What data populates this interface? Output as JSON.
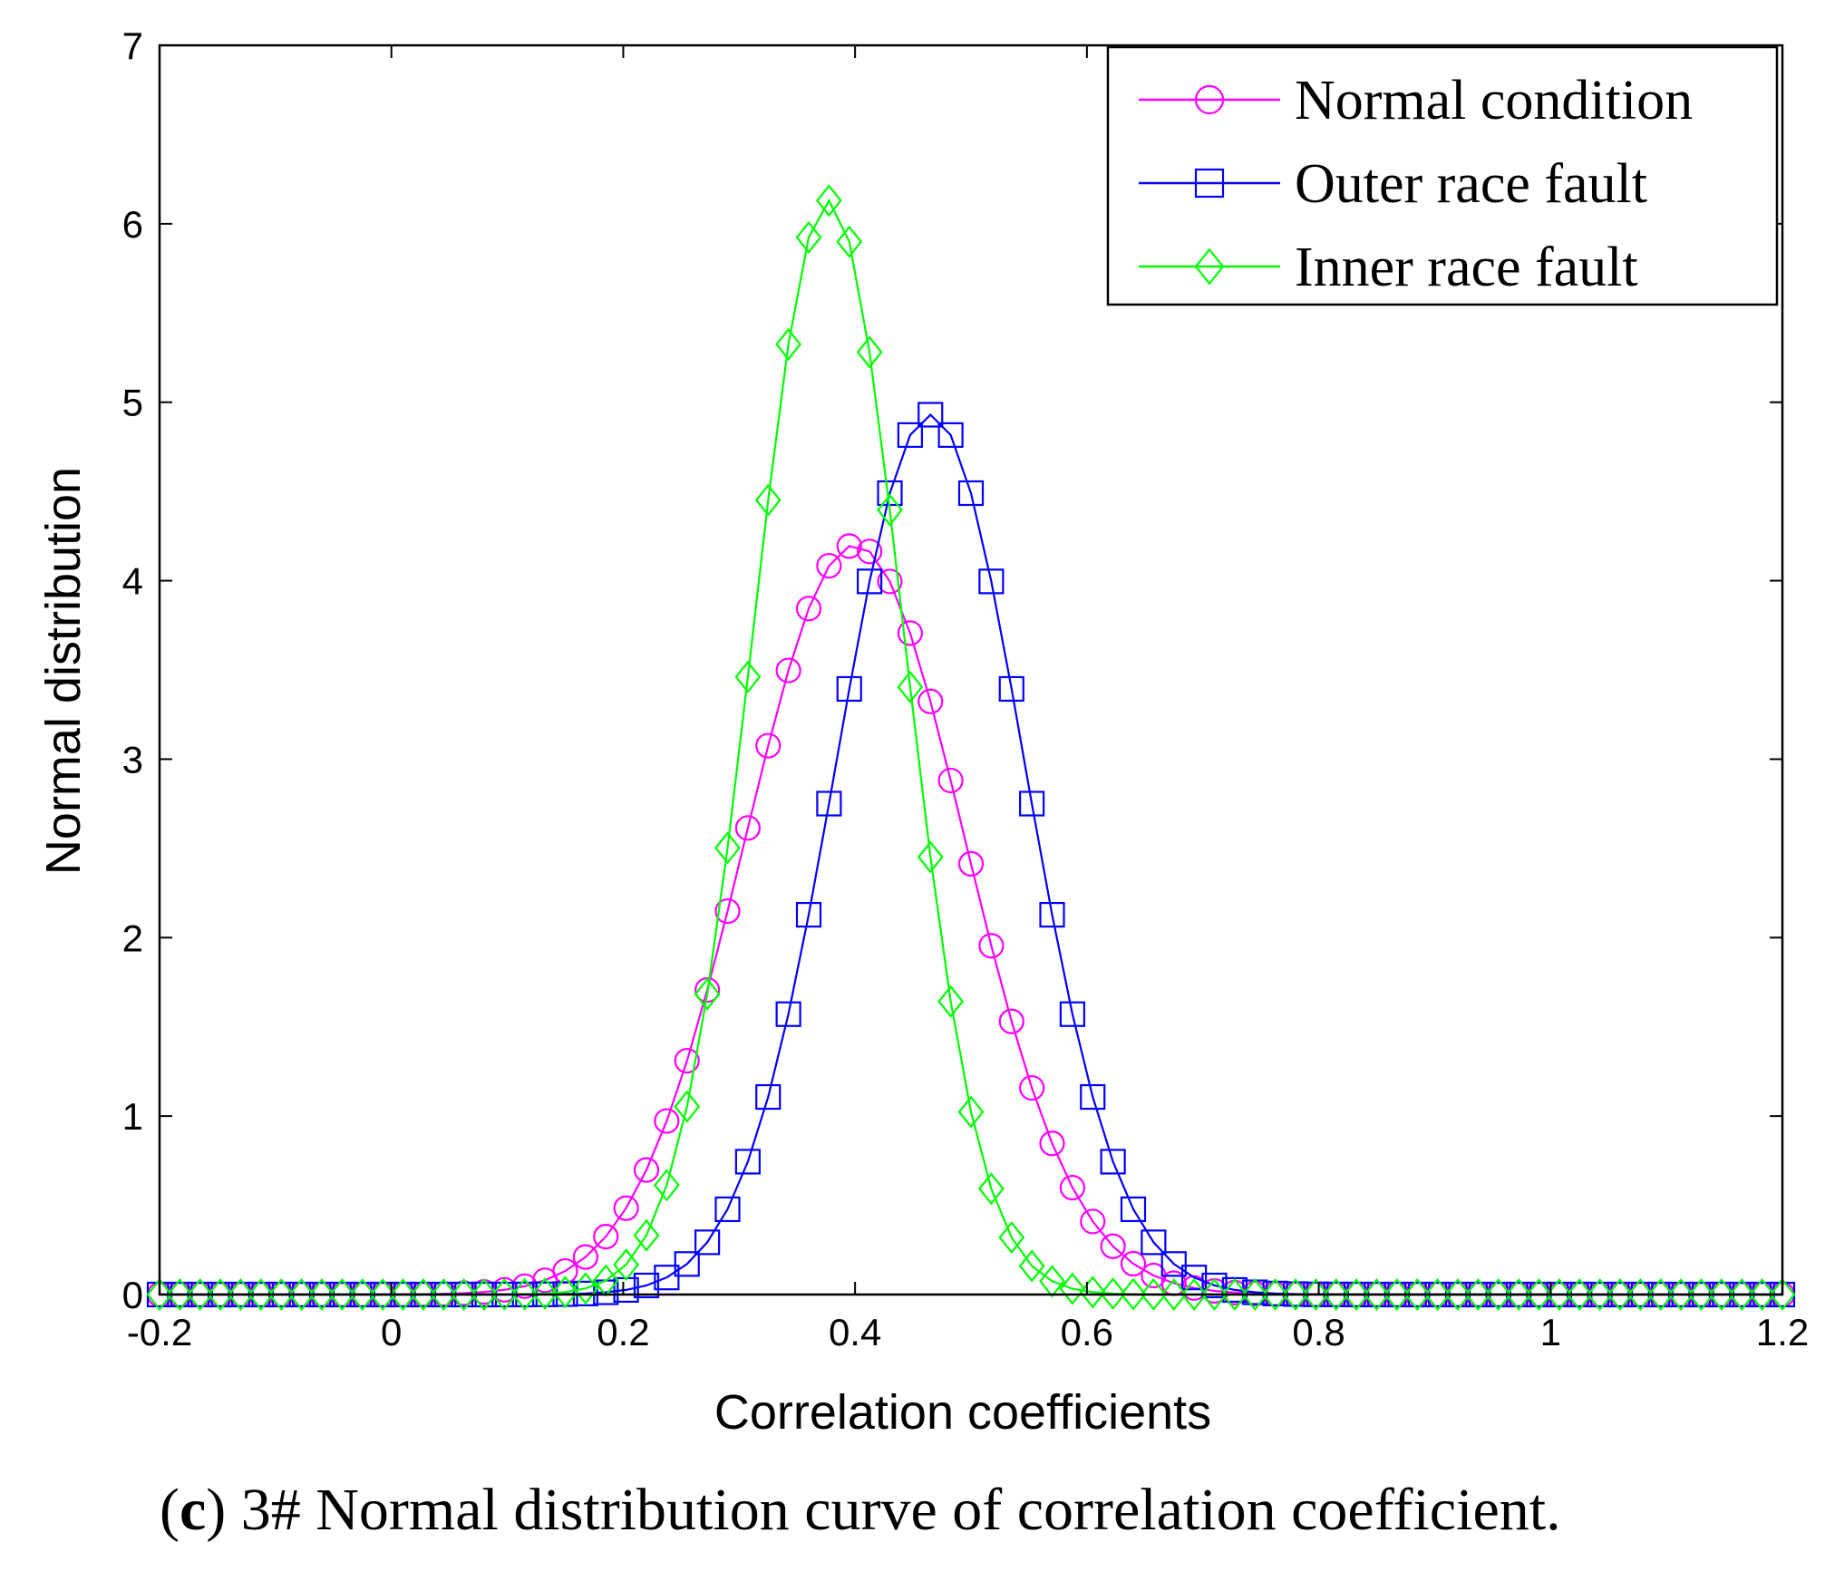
{
  "caption": {
    "label": "c",
    "text": "3# Normal distribution curve of correlation coefficient."
  },
  "chart_data": {
    "type": "line",
    "title": "",
    "xlabel": "Correlation coefficients",
    "ylabel": "Normal distribution",
    "xlim": [
      -0.2,
      1.2
    ],
    "ylim": [
      0,
      7
    ],
    "xticks": [
      -0.2,
      0,
      0.2,
      0.4,
      0.6,
      0.8,
      1,
      1.2
    ],
    "xtick_labels": [
      "-0.2",
      "0",
      "0.2",
      "0.4",
      "0.6",
      "0.8",
      "1",
      "1.2"
    ],
    "yticks": [
      0,
      1,
      2,
      3,
      4,
      5,
      6,
      7
    ],
    "ytick_labels": [
      "0",
      "1",
      "2",
      "3",
      "4",
      "5",
      "6",
      "7"
    ],
    "grid": false,
    "legend_position": "top-right",
    "x_step": 0.0175,
    "series": [
      {
        "name": "Normal condition",
        "color": "#ff00ff",
        "marker": "circle",
        "mean": 0.4,
        "std": 0.095,
        "peak": 4.2
      },
      {
        "name": "Outer race fault",
        "color": "#0000ff",
        "marker": "square",
        "mean": 0.465,
        "std": 0.081,
        "peak": 4.93
      },
      {
        "name": "Inner race fault",
        "color": "#00ff00",
        "marker": "diamond",
        "mean": 0.377,
        "std": 0.065,
        "peak": 6.13
      }
    ]
  }
}
